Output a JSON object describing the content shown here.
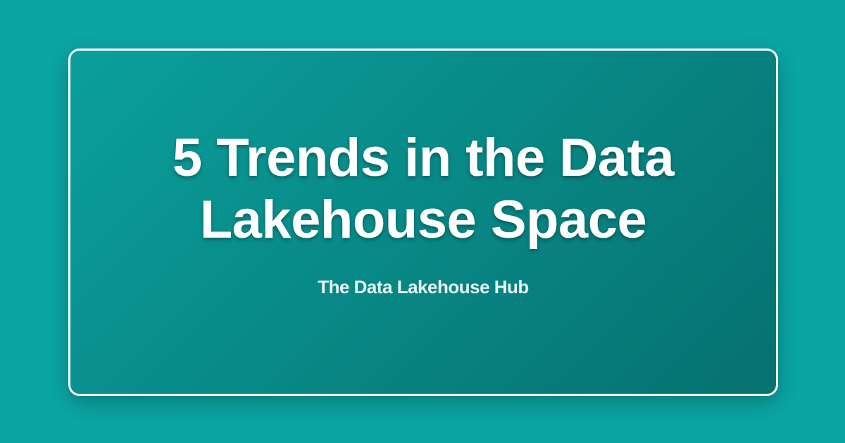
{
  "title_line1": "5 Trends in the Data",
  "title_line2": "Lakehouse Space",
  "subtitle": "The Data Lakehouse Hub",
  "colors": {
    "background": "#0ba5a4",
    "card_start": "#0b9f9c",
    "card_end": "#067170",
    "border": "#ffffff"
  }
}
